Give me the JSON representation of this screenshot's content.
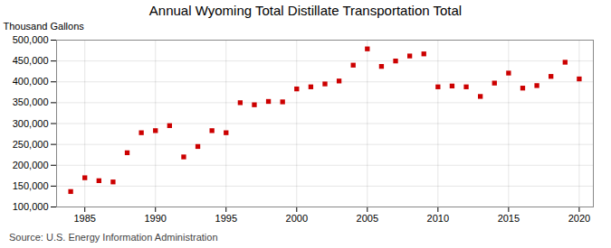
{
  "chart_data": {
    "type": "scatter",
    "title": "Annual Wyoming Total Distillate Transportation Total",
    "ylabel": "Thousand Gallons",
    "source": "Source: U.S. Energy Information Administration",
    "x": [
      1984,
      1985,
      1986,
      1987,
      1988,
      1989,
      1990,
      1991,
      1992,
      1993,
      1994,
      1995,
      1996,
      1997,
      1998,
      1999,
      2000,
      2001,
      2002,
      2003,
      2004,
      2005,
      2006,
      2007,
      2008,
      2009,
      2010,
      2011,
      2012,
      2013,
      2014,
      2015,
      2016,
      2017,
      2018,
      2019,
      2020
    ],
    "values": [
      137000,
      170000,
      163000,
      160000,
      230000,
      278000,
      283000,
      295000,
      220000,
      245000,
      283000,
      278000,
      350000,
      345000,
      353000,
      352000,
      383000,
      388000,
      395000,
      402000,
      440000,
      479000,
      437000,
      450000,
      462000,
      467000,
      388000,
      390000,
      388000,
      365000,
      397000,
      421000,
      385000,
      391000,
      413000,
      447000,
      407000
    ],
    "color": "#cc0000",
    "marker": "square",
    "xlim": [
      1983,
      2021
    ],
    "xticks": [
      1985,
      1990,
      1995,
      2000,
      2005,
      2010,
      2015,
      2020
    ],
    "ylim": [
      100000,
      500000
    ],
    "yticks": [
      {
        "value": 100000,
        "label": "100,000"
      },
      {
        "value": 150000,
        "label": "150,000"
      },
      {
        "value": 200000,
        "label": "200,000"
      },
      {
        "value": 250000,
        "label": "250,000"
      },
      {
        "value": 300000,
        "label": "300,000"
      },
      {
        "value": 350000,
        "label": "350,000"
      },
      {
        "value": 400000,
        "label": "400,000"
      },
      {
        "value": 450000,
        "label": "450,000"
      },
      {
        "value": 500000,
        "label": "500,000"
      }
    ],
    "grid": true
  }
}
